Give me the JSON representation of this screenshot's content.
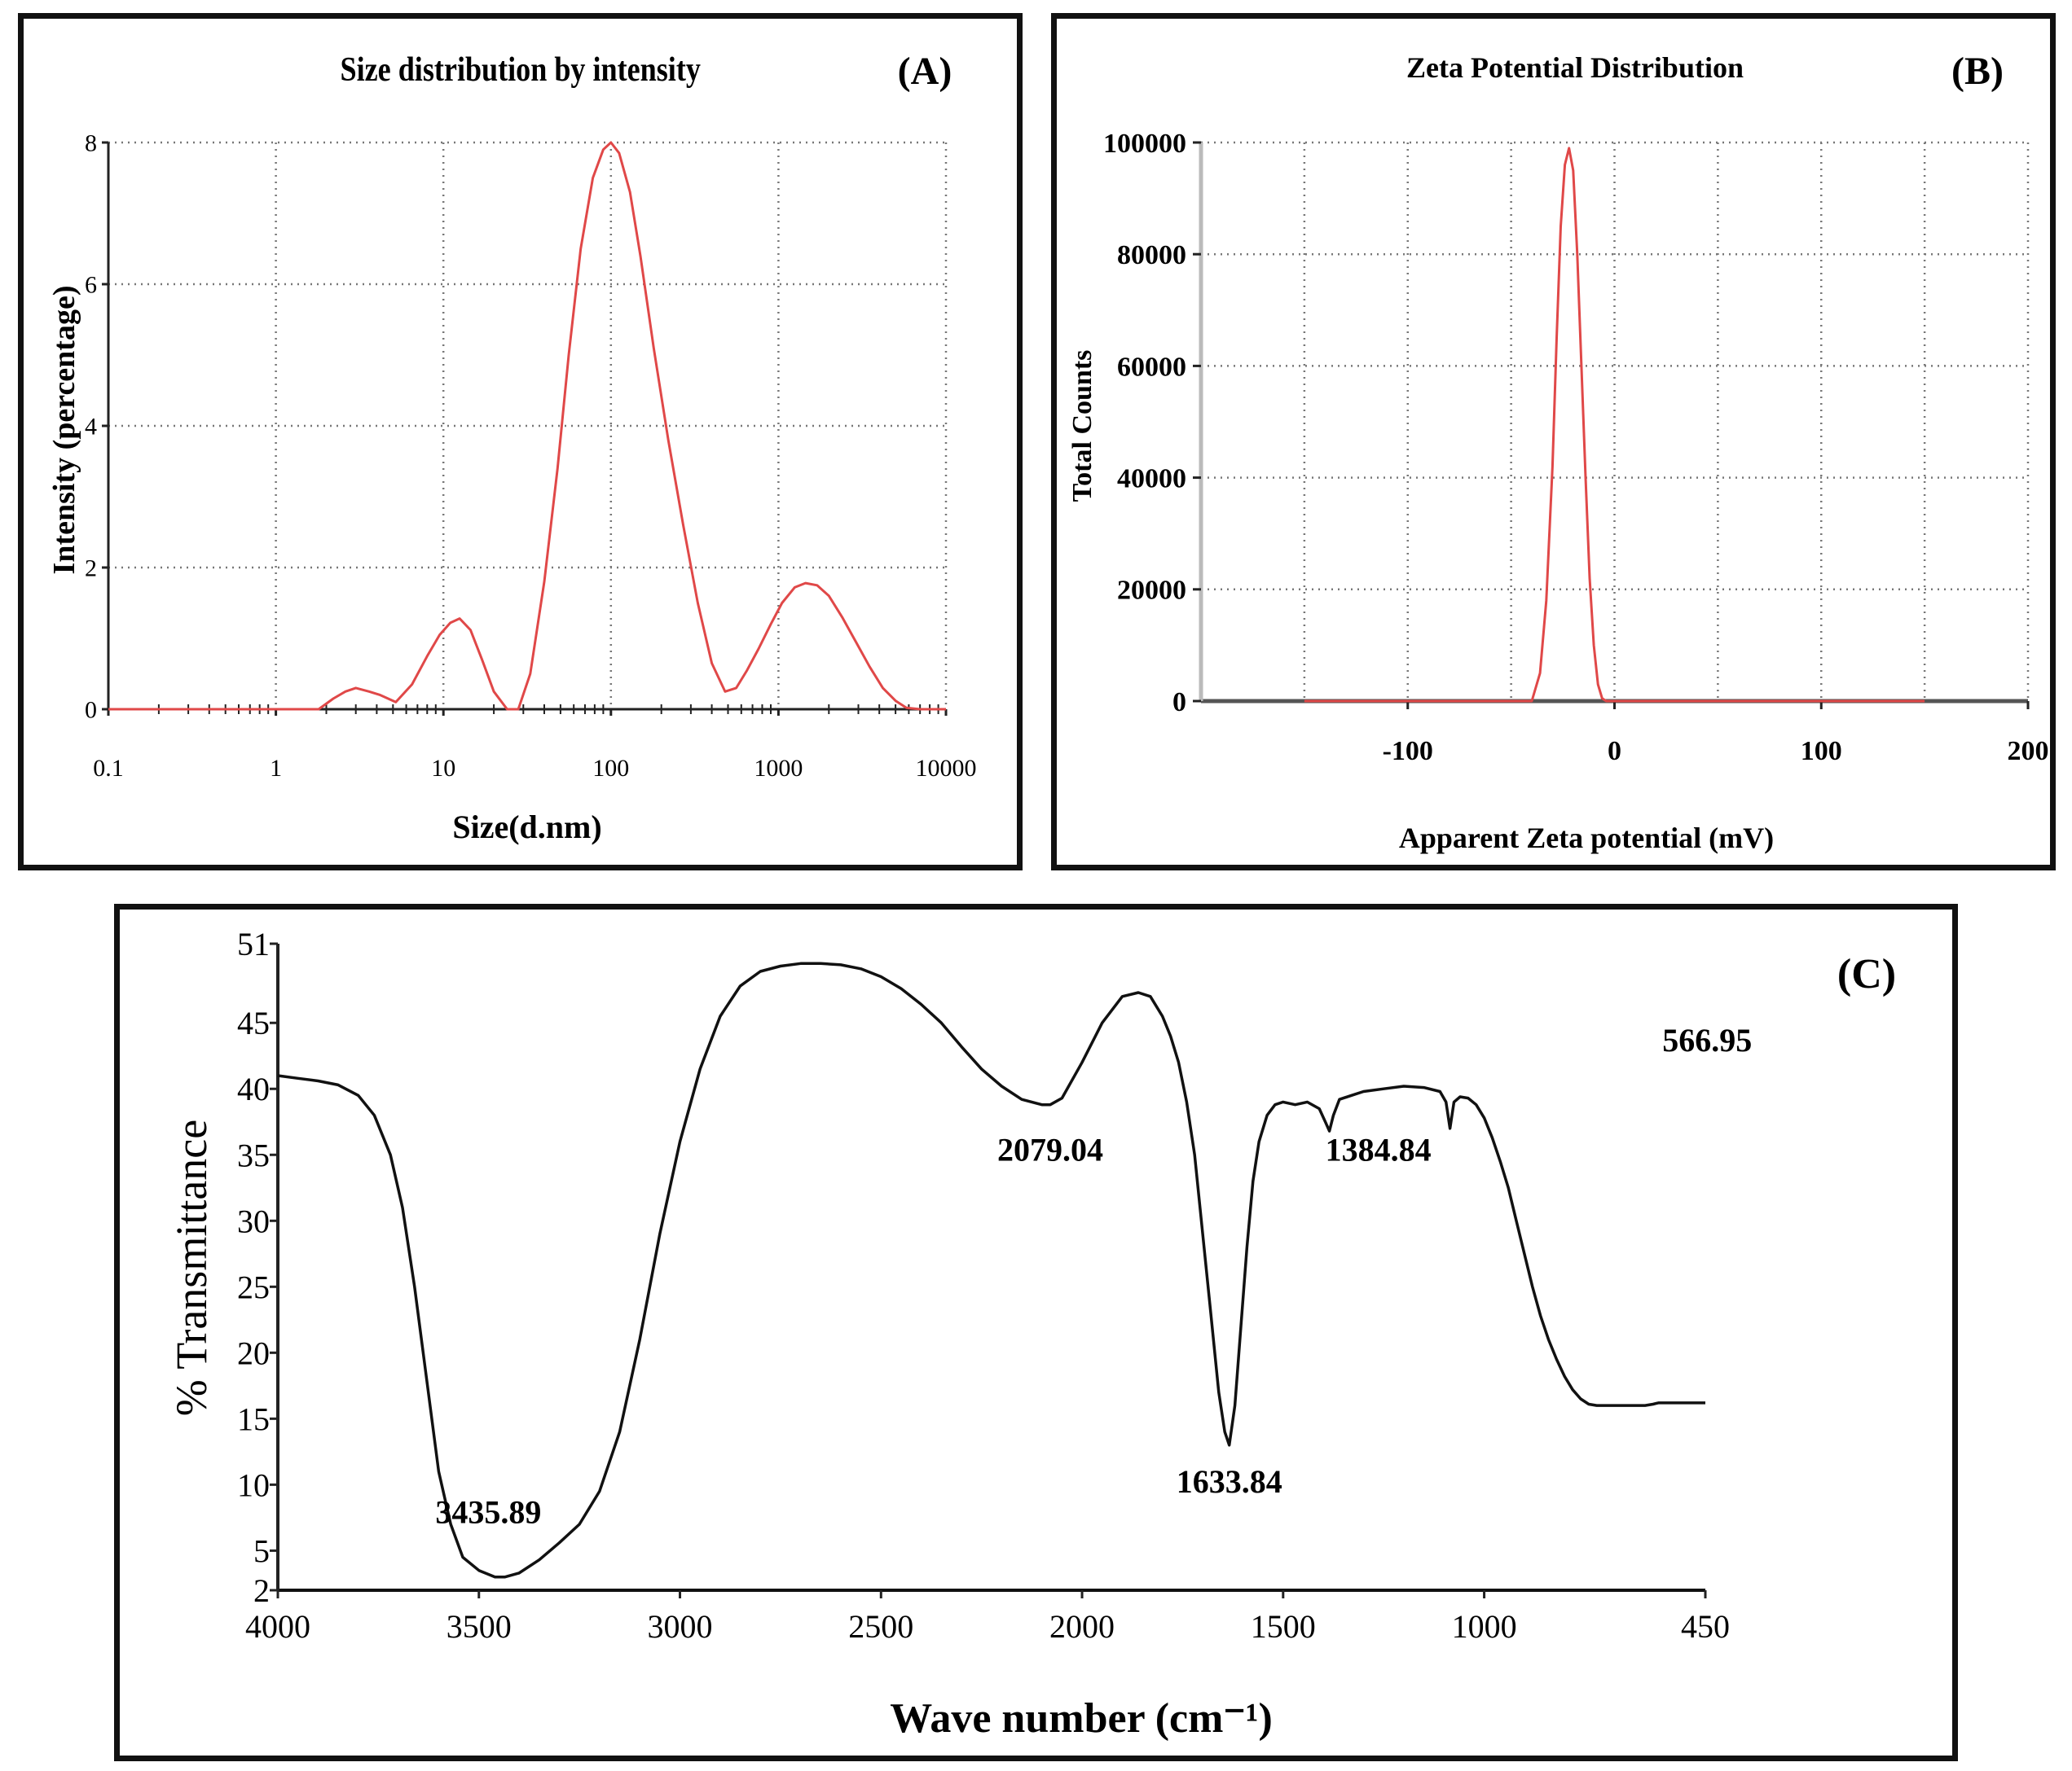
{
  "colors": {
    "curve_red": "#e04848",
    "curve_black": "#111111",
    "grid": "#777777",
    "frame": "#111111"
  },
  "chart_data": [
    {
      "id": "A",
      "type": "line",
      "panel_label": "(A)",
      "title": "Size distribution by intensity",
      "xlabel": "Size(d.nm)",
      "ylabel": "Intensity  (percentage)",
      "xscale": "log",
      "xlim": [
        0.1,
        10000
      ],
      "ylim": [
        0,
        8
      ],
      "xticks": [
        0.1,
        1,
        10,
        100,
        1000,
        10000
      ],
      "xtick_labels": [
        "0.1",
        "1",
        "10",
        "100",
        "1000",
        "10000"
      ],
      "yticks": [
        0,
        2,
        4,
        6,
        8
      ],
      "ytick_labels": [
        "0",
        "2",
        "4",
        "6",
        "8"
      ],
      "grid": true,
      "series": [
        {
          "name": "Intensity",
          "color": "#e04848",
          "x": [
            0.1,
            0.4,
            1,
            1.8,
            2.2,
            2.6,
            3.0,
            3.6,
            4.2,
            5.2,
            6.5,
            8,
            9.5,
            11,
            12.5,
            14.5,
            17,
            20,
            24,
            28,
            33,
            40,
            48,
            56,
            66,
            78,
            90,
            100,
            112,
            130,
            150,
            180,
            220,
            270,
            330,
            400,
            480,
            560,
            650,
            760,
            900,
            1050,
            1250,
            1450,
            1700,
            2000,
            2400,
            2900,
            3500,
            4200,
            5000,
            5800,
            7000,
            10000
          ],
          "y": [
            0,
            0,
            0,
            0,
            0.15,
            0.25,
            0.3,
            0.25,
            0.2,
            0.1,
            0.35,
            0.75,
            1.05,
            1.22,
            1.28,
            1.12,
            0.7,
            0.25,
            0,
            0,
            0.5,
            1.8,
            3.4,
            5.0,
            6.5,
            7.5,
            7.9,
            8.0,
            7.85,
            7.3,
            6.4,
            5.1,
            3.8,
            2.6,
            1.5,
            0.65,
            0.25,
            0.3,
            0.55,
            0.85,
            1.2,
            1.5,
            1.72,
            1.78,
            1.75,
            1.6,
            1.3,
            0.95,
            0.6,
            0.3,
            0.12,
            0.02,
            0,
            0
          ]
        }
      ]
    },
    {
      "id": "B",
      "type": "line",
      "panel_label": "(B)",
      "title": "Zeta Potential Distribution",
      "xlabel": "Apparent Zeta potential (mV)",
      "ylabel": "Total Counts",
      "xlim": [
        -200,
        200
      ],
      "ylim": [
        0,
        100000
      ],
      "xticks": [
        -100,
        0,
        100,
        200
      ],
      "xtick_labels": [
        "-100",
        "0",
        "100",
        "200"
      ],
      "yticks": [
        0,
        20000,
        40000,
        60000,
        80000,
        100000
      ],
      "ytick_labels": [
        "0",
        "20000",
        "40000",
        "60000",
        "80000",
        "100000"
      ],
      "grid": true,
      "series": [
        {
          "name": "Total Counts",
          "color": "#e04848",
          "x": [
            -150,
            -40,
            -36,
            -33,
            -30,
            -28,
            -26,
            -24,
            -22,
            -20,
            -18,
            -16,
            -14,
            -12,
            -10,
            -8,
            -6,
            -4,
            150
          ],
          "y": [
            0,
            0,
            5000,
            18000,
            42000,
            65000,
            85000,
            96000,
            99000,
            95000,
            80000,
            60000,
            40000,
            22000,
            10000,
            3000,
            500,
            0,
            0
          ]
        }
      ]
    },
    {
      "id": "C",
      "type": "line",
      "panel_label": "(C)",
      "title": "",
      "xlabel": "Wave number (cm⁻¹)",
      "ylabel": "% Transmittance",
      "xlim": [
        4000,
        450
      ],
      "ylim": [
        2,
        51
      ],
      "xticks": [
        4000,
        3500,
        3000,
        2500,
        2000,
        1500,
        1000,
        450
      ],
      "xtick_labels": [
        "4000",
        "3500",
        "3000",
        "2500",
        "2000",
        "1500",
        "1000",
        "450"
      ],
      "yticks": [
        2,
        5,
        10,
        15,
        20,
        25,
        30,
        35,
        40,
        45,
        51
      ],
      "ytick_labels": [
        "2",
        "5",
        "10",
        "15",
        "20",
        "25",
        "30",
        "35",
        "40",
        "45",
        "51"
      ],
      "grid": false,
      "annotations": [
        {
          "text": "3435.89",
          "x": 3435.89,
          "y": 3.5
        },
        {
          "text": "2079.04",
          "x": 2079.04,
          "y": 39
        },
        {
          "text": "1633.84",
          "x": 1633.84,
          "y": 13
        },
        {
          "text": "1384.84",
          "x": 1384.84,
          "y": 38
        },
        {
          "text": "566.95",
          "x": 566.95,
          "y": 40
        }
      ],
      "series": [
        {
          "name": "% Transmittance",
          "color": "#111111",
          "x": [
            4000,
            3950,
            3900,
            3850,
            3800,
            3760,
            3720,
            3690,
            3660,
            3630,
            3600,
            3570,
            3540,
            3500,
            3460,
            3435.89,
            3400,
            3350,
            3300,
            3250,
            3200,
            3150,
            3100,
            3050,
            3000,
            2950,
            2900,
            2850,
            2800,
            2750,
            2700,
            2650,
            2600,
            2550,
            2500,
            2450,
            2400,
            2350,
            2300,
            2250,
            2200,
            2150,
            2100,
            2079.04,
            2050,
            2000,
            1950,
            1900,
            1860,
            1830,
            1800,
            1780,
            1760,
            1740,
            1720,
            1700,
            1680,
            1660,
            1645,
            1633.84,
            1620,
            1605,
            1590,
            1575,
            1560,
            1540,
            1520,
            1500,
            1470,
            1440,
            1410,
            1395,
            1384.84,
            1375,
            1360,
            1330,
            1300,
            1250,
            1200,
            1150,
            1110,
            1095,
            1085,
            1075,
            1060,
            1040,
            1020,
            1000,
            980,
            960,
            940,
            920,
            900,
            880,
            860,
            840,
            820,
            800,
            780,
            760,
            740,
            720,
            700,
            680,
            660,
            640,
            620,
            600,
            580,
            566.95,
            540,
            500,
            450
          ],
          "y": [
            41,
            40.8,
            40.6,
            40.3,
            39.5,
            38,
            35,
            31,
            25,
            18,
            11,
            7,
            4.5,
            3.5,
            3.0,
            3.0,
            3.3,
            4.3,
            5.6,
            7.0,
            9.5,
            14,
            21,
            29,
            36,
            41.5,
            45.5,
            47.8,
            48.9,
            49.3,
            49.5,
            49.5,
            49.4,
            49.1,
            48.5,
            47.6,
            46.4,
            45.0,
            43.2,
            41.5,
            40.2,
            39.2,
            38.8,
            38.8,
            39.3,
            42,
            45,
            47,
            47.3,
            47.0,
            45.5,
            44,
            42,
            39,
            35,
            29,
            23,
            17,
            14,
            13.0,
            16,
            22,
            28,
            33,
            36,
            38,
            38.8,
            39.0,
            38.8,
            39.0,
            38.5,
            37.5,
            36.8,
            38,
            39.2,
            39.5,
            39.8,
            40.0,
            40.2,
            40.1,
            39.8,
            39.0,
            37.0,
            39.0,
            39.4,
            39.3,
            38.8,
            37.8,
            36.3,
            34.5,
            32.5,
            30.0,
            27.5,
            25.0,
            22.8,
            21.0,
            19.5,
            18.2,
            17.2,
            16.5,
            16.1,
            16.0,
            16.0,
            16.0,
            16.0,
            16.0,
            16.0,
            16.0,
            16.1,
            16.2,
            16.2,
            16.2,
            16.2
          ]
        }
      ]
    }
  ]
}
